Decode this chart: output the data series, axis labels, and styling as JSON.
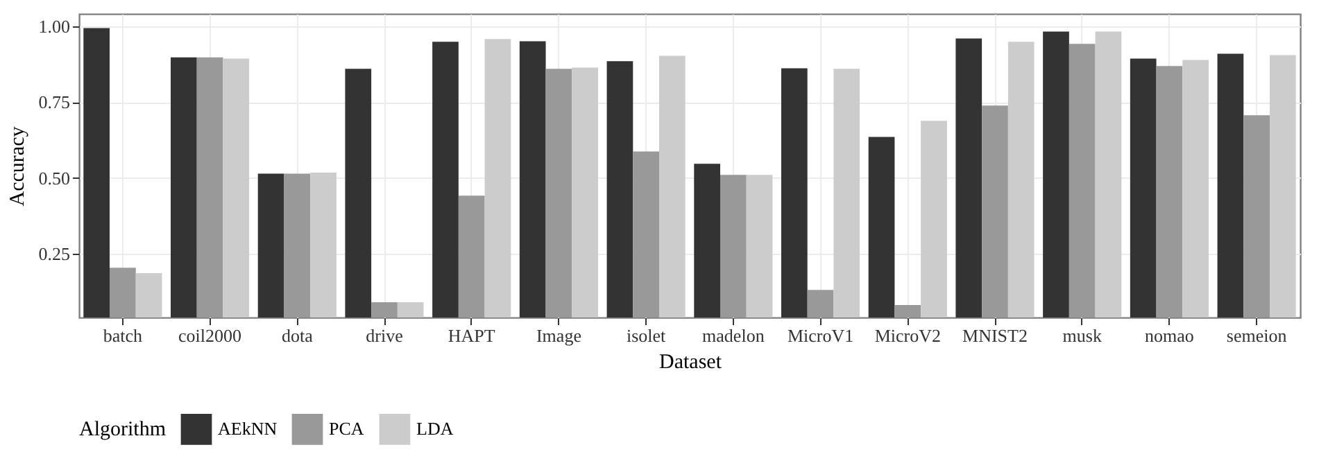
{
  "chart_data": {
    "type": "bar",
    "xlabel": "Dataset",
    "ylabel": "Accuracy",
    "legend_title": "Algorithm",
    "legend": "bottom",
    "grid": true,
    "categories": [
      "batch",
      "coil2000",
      "dota",
      "drive",
      "HAPT",
      "Image",
      "isolet",
      "madelon",
      "MicroV1",
      "MicroV2",
      "MNIST2",
      "musk",
      "nomao",
      "semeion"
    ],
    "series": [
      {
        "name": "AEkNN",
        "color": "#333333",
        "values": [
          0.993,
          0.897,
          0.514,
          0.859,
          0.948,
          0.95,
          0.884,
          0.546,
          0.861,
          0.635,
          0.959,
          0.982,
          0.893,
          0.909
        ]
      },
      {
        "name": "PCA",
        "color": "#999999",
        "values": [
          0.204,
          0.897,
          0.514,
          0.09,
          0.441,
          0.859,
          0.587,
          0.51,
          0.131,
          0.081,
          0.738,
          0.941,
          0.868,
          0.706
        ]
      },
      {
        "name": "LDA",
        "color": "#cccccc",
        "values": [
          0.186,
          0.893,
          0.517,
          0.09,
          0.957,
          0.863,
          0.902,
          0.51,
          0.859,
          0.688,
          0.948,
          0.982,
          0.888,
          0.904
        ]
      }
    ],
    "ylim": [
      0.04,
      1.04
    ],
    "yticks": [
      {
        "value": 0.25,
        "label": "0.25"
      },
      {
        "value": 0.5,
        "label": "0.50"
      },
      {
        "value": 0.75,
        "label": "0.75"
      },
      {
        "value": 1,
        "label": "1.00"
      }
    ]
  }
}
